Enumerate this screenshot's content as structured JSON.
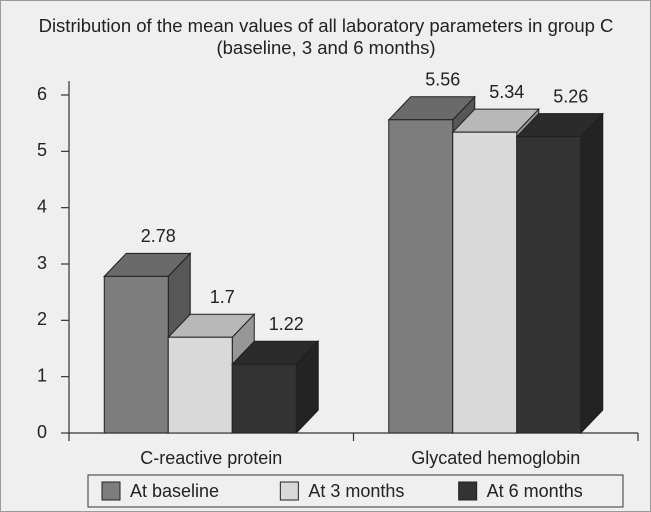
{
  "chart_data": {
    "type": "bar3d",
    "title": "Distribution of the mean values of all laboratory parameters in group C (baseline, 3 and 6 months)",
    "categories": [
      "C-reactive protein",
      "Glycated hemoglobin"
    ],
    "series": [
      {
        "name": "At baseline",
        "color": "#7d7d7d",
        "values": [
          2.78,
          5.56
        ]
      },
      {
        "name": "At 3 months",
        "color": "#d9d9d9",
        "values": [
          1.7,
          5.34
        ]
      },
      {
        "name": "At 6 months",
        "color": "#333333",
        "values": [
          1.22,
          5.26
        ]
      }
    ],
    "ylim": [
      0,
      6
    ],
    "yticks": [
      0,
      1,
      2,
      3,
      4,
      5,
      6
    ],
    "legend": "bottom"
  }
}
